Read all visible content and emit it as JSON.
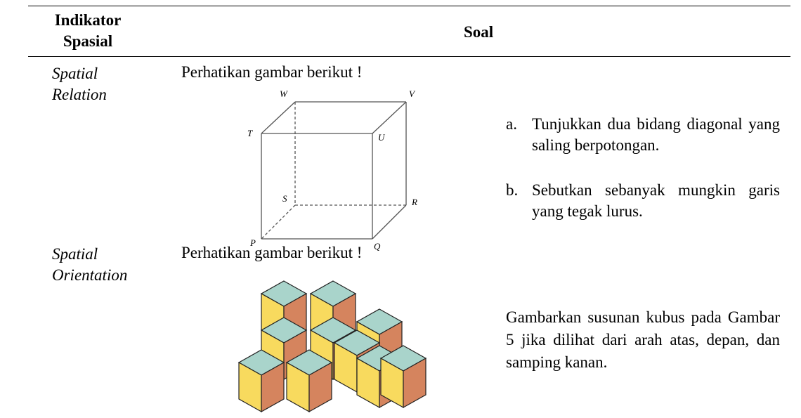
{
  "table": {
    "header": [
      "Indikator Spasial",
      "Soal"
    ],
    "rows": [
      {
        "indicator": "Spatial Relation",
        "prompt": "Perhatikan gambar berikut !",
        "figure_labels": {
          "W": "W",
          "V": "V",
          "T": "T",
          "U": "U",
          "S": "S",
          "R": "R",
          "P": "P",
          "Q": "Q"
        },
        "items": [
          {
            "marker": "a.",
            "text": "Tunjukkan dua bidang diagonal yang saling berpotongan."
          },
          {
            "marker": "b.",
            "text": "Sebutkan sebanyak mungkin garis yang tegak lurus."
          }
        ]
      },
      {
        "indicator": "Spatial Orientation",
        "prompt": "Perhatikan gambar berikut !",
        "text": "Gambarkan susunan kubus pada Gambar 5 jika dilihat dari arah atas, depan, dan samping kanan."
      }
    ]
  }
}
